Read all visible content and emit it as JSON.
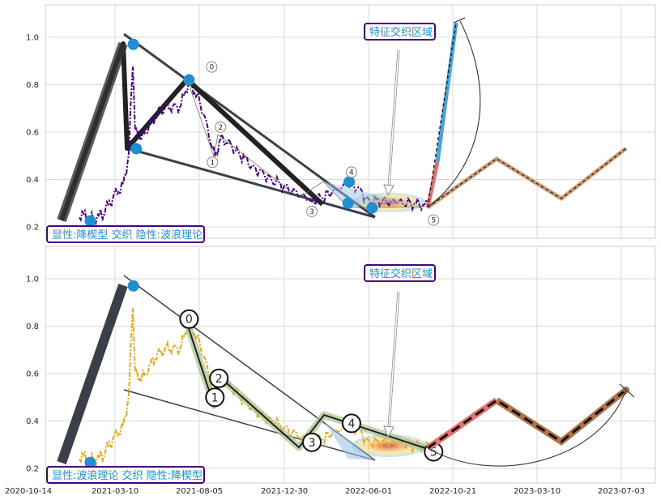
{
  "chart_data": [
    {
      "type": "line",
      "panel": "top",
      "ylim": [
        0.15,
        1.12
      ],
      "yticks": [
        "0.2",
        "0.4",
        "0.6",
        "0.8",
        "1.0"
      ],
      "legend_box": "显性:降楔型 交织 隐性:波浪理论",
      "zone_box": "特征交织区域",
      "wave_labels": [
        "0",
        "1",
        "2",
        "3",
        "4",
        "5"
      ],
      "series_color": "#4b0082",
      "anchor_points": [
        {
          "date": "2020-12-20",
          "value": 0.225
        },
        {
          "date": "2021-03-05",
          "value": 0.97
        },
        {
          "date": "2021-03-10",
          "value": 0.53
        },
        {
          "date": "2021-06-10",
          "value": 0.82
        },
        {
          "date": "2022-03-14",
          "value": 0.3
        },
        {
          "date": "2022-03-16",
          "value": 0.39
        },
        {
          "date": "2022-04-25",
          "value": 0.28
        }
      ],
      "wave_points": [
        {
          "label": "0",
          "date": "2021-06-10",
          "value": 0.82
        },
        {
          "label": "1",
          "date": "2021-07-25",
          "value": 0.5
        },
        {
          "label": "2",
          "date": "2021-08-01",
          "value": 0.58
        },
        {
          "label": "3",
          "date": "2022-01-10",
          "value": 0.31
        },
        {
          "label": "4",
          "date": "2022-03-20",
          "value": 0.39
        },
        {
          "label": "5",
          "date": "2022-08-10",
          "value": 0.27
        }
      ],
      "projection": [
        {
          "date": "2022-08-10",
          "value": 0.27
        },
        {
          "date": "2022-12-10",
          "value": 0.48
        },
        {
          "date": "2023-03-15",
          "value": 0.315
        },
        {
          "date": "2023-06-25",
          "value": 0.53
        }
      ],
      "vertical_projection": [
        {
          "date": "2022-08-10",
          "value": 0.27
        },
        {
          "date": "2022-09-15",
          "value": 1.05
        }
      ]
    },
    {
      "type": "line",
      "panel": "bottom",
      "ylim": [
        0.15,
        1.12
      ],
      "yticks": [
        "0.2",
        "0.4",
        "0.6",
        "0.8",
        "1.0"
      ],
      "xticks": [
        "2020-10-14",
        "2021-03-10",
        "2021-08-05",
        "2021-12-30",
        "2022-06-01",
        "2022-10-21",
        "2023-03-10",
        "2023-07-03"
      ],
      "legend_box": "显性:波浪理论 交织 隐性:降楔型",
      "zone_box": "特征交织区域",
      "wave_labels": [
        "0",
        "1",
        "2",
        "3",
        "4",
        "5"
      ],
      "series_color": "#e6a817",
      "anchor_points": [
        {
          "date": "2020-12-20",
          "value": 0.225
        },
        {
          "date": "2021-03-05",
          "value": 0.97
        }
      ],
      "wave_points": [
        {
          "label": "0",
          "date": "2021-06-10",
          "value": 0.83
        },
        {
          "label": "1",
          "date": "2021-07-25",
          "value": 0.5
        },
        {
          "label": "2",
          "date": "2021-08-01",
          "value": 0.58
        },
        {
          "label": "3",
          "date": "2022-01-10",
          "value": 0.31
        },
        {
          "label": "4",
          "date": "2022-03-20",
          "value": 0.39
        },
        {
          "label": "5",
          "date": "2022-08-10",
          "value": 0.27
        }
      ],
      "projection": [
        {
          "date": "2022-08-10",
          "value": 0.27
        },
        {
          "date": "2022-12-10",
          "value": 0.49
        },
        {
          "date": "2023-03-15",
          "value": 0.315
        },
        {
          "date": "2023-06-25",
          "value": 0.53
        }
      ]
    }
  ]
}
